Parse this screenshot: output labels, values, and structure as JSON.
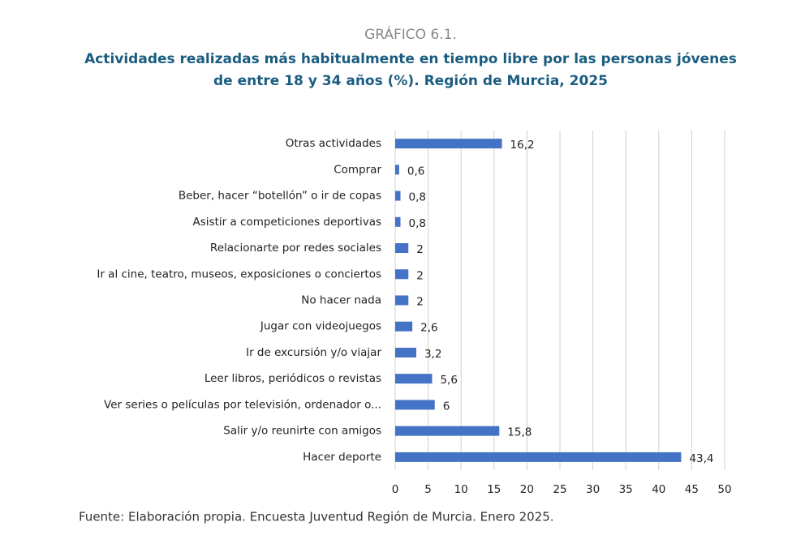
{
  "chart_data": {
    "type": "bar",
    "orientation": "horizontal",
    "kicker": "GRÁFICO 6.1.",
    "title": [
      "Actividades realizadas más habitualmente en tiempo libre por las personas jóvenes",
      "de entre 18 y 34 años (%). Región de Murcia, 2025"
    ],
    "source": "Fuente: Elaboración propia. Encuesta Juventud Región de Murcia. Enero 2025.",
    "categories": [
      "Otras actividades",
      "Comprar",
      "Beber, hacer “botellón” o ir de copas",
      "Asistir a competiciones deportivas",
      "Relacionarte por redes sociales",
      "Ir al cine, teatro, museos, exposiciones o conciertos",
      "No hacer nada",
      "Jugar con videojuegos",
      "Ir de excursión y/o viajar",
      "Leer libros, periódicos o revistas",
      "Ver series o películas por televisión, ordenador o...",
      "Salir y/o reunirte con amigos",
      "Hacer deporte"
    ],
    "values": [
      16.2,
      0.6,
      0.8,
      0.8,
      2,
      2,
      2,
      2.6,
      3.2,
      5.6,
      6,
      15.8,
      43.4
    ],
    "value_labels": [
      "16,2",
      "0,6",
      "0,8",
      "0,8",
      "2",
      "2",
      "2",
      "2,6",
      "3,2",
      "5,6",
      "6",
      "15,8",
      "43,4"
    ],
    "color": "#4472c4",
    "xlim": [
      0,
      50
    ],
    "xticks": [
      0,
      5,
      10,
      15,
      20,
      25,
      30,
      35,
      40,
      45,
      50
    ],
    "grid": true
  }
}
